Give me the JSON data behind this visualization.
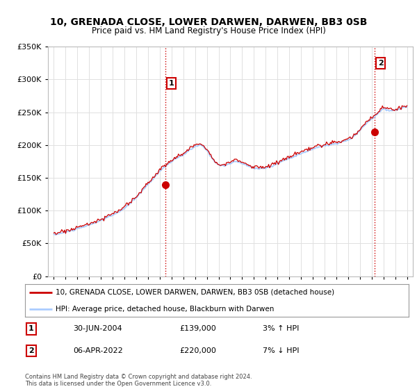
{
  "title": "10, GRENADA CLOSE, LOWER DARWEN, DARWEN, BB3 0SB",
  "subtitle": "Price paid vs. HM Land Registry's House Price Index (HPI)",
  "legend_line1": "10, GRENADA CLOSE, LOWER DARWEN, DARWEN, BB3 0SB (detached house)",
  "legend_line2": "HPI: Average price, detached house, Blackburn with Darwen",
  "footer": "Contains HM Land Registry data © Crown copyright and database right 2024.\nThis data is licensed under the Open Government Licence v3.0.",
  "transaction1": {
    "label": "1",
    "date": "30-JUN-2004",
    "price": 139000,
    "hpi_pct": "3% ↑ HPI",
    "year": 2004.5
  },
  "transaction2": {
    "label": "2",
    "date": "06-APR-2022",
    "price": 220000,
    "hpi_pct": "7% ↓ HPI",
    "year": 2022.27
  },
  "ylim": [
    0,
    350000
  ],
  "xlim_start": 1994.5,
  "xlim_end": 2025.5,
  "line_color_red": "#cc0000",
  "line_color_blue": "#aaccff",
  "marker_color_red": "#cc0000",
  "vline_color": "#cc0000",
  "grid_color": "#e0e0e0",
  "bg_color": "#ffffff",
  "yticks": [
    0,
    50000,
    100000,
    150000,
    200000,
    250000,
    300000,
    350000
  ]
}
